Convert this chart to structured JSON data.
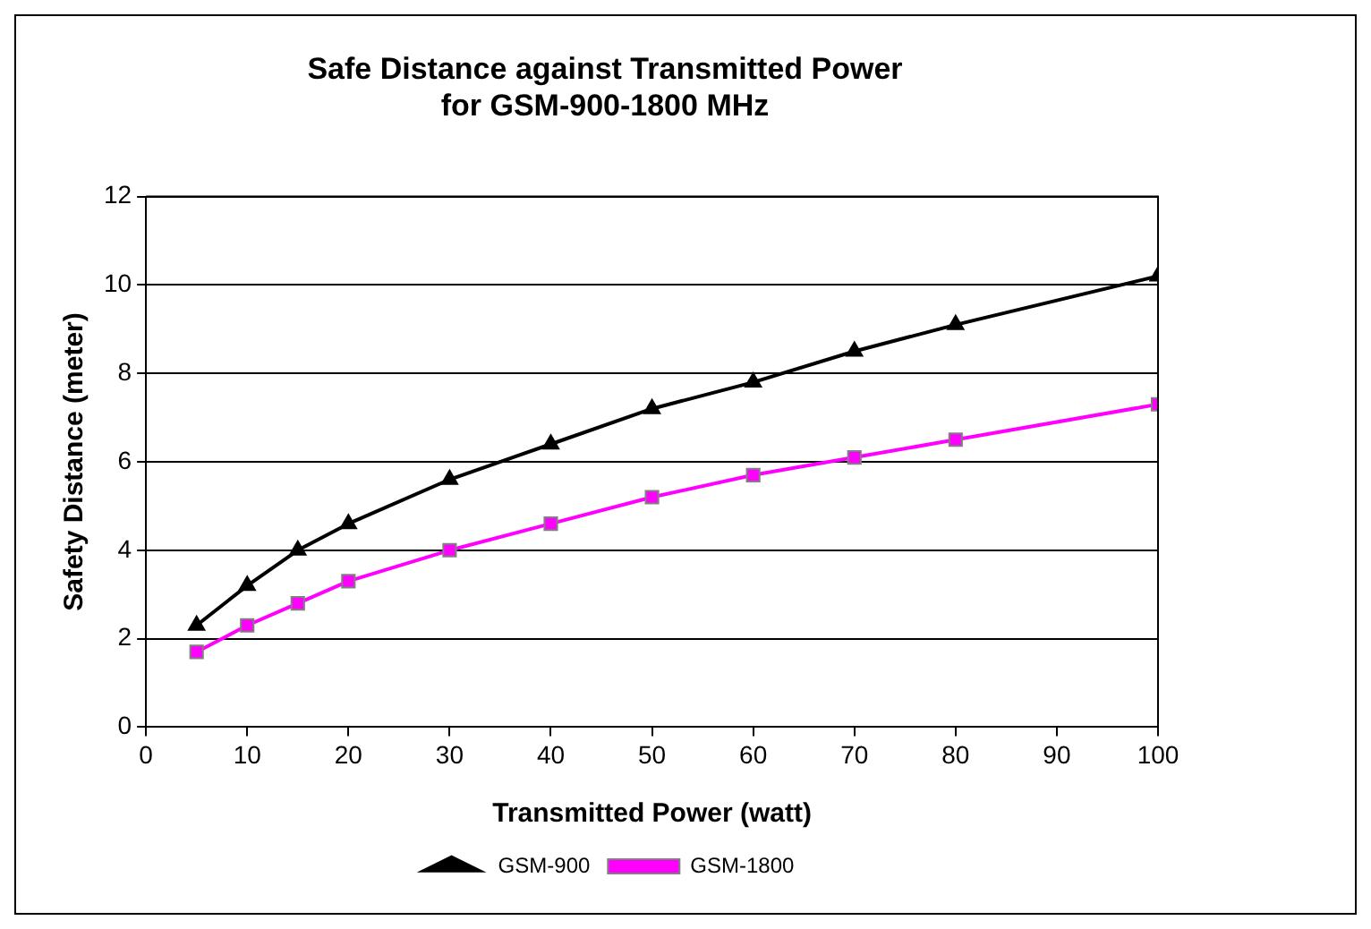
{
  "chart_data": {
    "type": "line",
    "title": "Safe Distance against Transmitted Power\nfor GSM-900-1800 MHz",
    "xlabel": "Transmitted Power (watt)",
    "ylabel": "Safety Distance (meter)",
    "x": [
      5,
      10,
      15,
      20,
      30,
      40,
      50,
      60,
      70,
      80,
      100
    ],
    "series": [
      {
        "name": "GSM-900",
        "color": "#000000",
        "marker": "triangle",
        "values": [
          2.3,
          3.2,
          4.0,
          4.6,
          5.6,
          6.4,
          7.2,
          7.8,
          8.5,
          9.1,
          10.2
        ]
      },
      {
        "name": "GSM-1800",
        "color": "#ff00ff",
        "marker": "square",
        "values": [
          1.7,
          2.3,
          2.8,
          3.3,
          4.0,
          4.6,
          5.2,
          5.7,
          6.1,
          6.5,
          7.3
        ]
      }
    ],
    "xlim": [
      0,
      100
    ],
    "xticks": [
      0,
      10,
      20,
      30,
      40,
      50,
      60,
      70,
      80,
      90,
      100
    ],
    "ylim": [
      0,
      12
    ],
    "yticks": [
      0,
      2,
      4,
      6,
      8,
      10,
      12
    ],
    "grid": "y",
    "legend": "bottom",
    "line_style": "solid"
  }
}
